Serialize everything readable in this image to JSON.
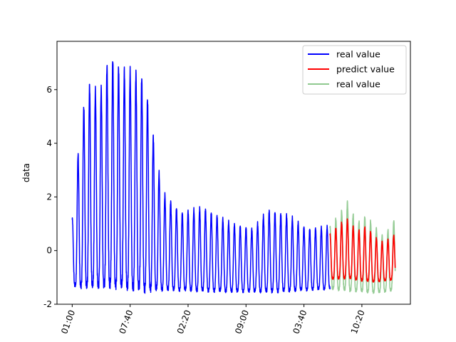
{
  "chart_data": {
    "type": "line",
    "title": "",
    "xlabel": "",
    "ylabel": "data",
    "ylim": [
      -2,
      7.8
    ],
    "yticks": [
      -2,
      0,
      2,
      4,
      6
    ],
    "x_tick_labels": [
      "01:00",
      "07:40",
      "02:20",
      "09:00",
      "03:40",
      "10:20"
    ],
    "x_tick_positions": [
      0,
      400,
      800,
      1200,
      1600,
      2000
    ],
    "xlim": [
      -105,
      2335
    ],
    "grid": false,
    "legend": "top-right",
    "legend_entries": [
      {
        "label": "real value",
        "color": "#0000ff"
      },
      {
        "label": "predict value",
        "color": "#ff0000"
      },
      {
        "label": "real value",
        "color": "#90c990"
      }
    ],
    "series": [
      {
        "name": "real value",
        "color": "#0000ff",
        "x_range": [
          0,
          1780
        ],
        "period": 40,
        "peak_anchors": [
          [
            0,
            1.15
          ],
          [
            60,
            4.8
          ],
          [
            110,
            6.2
          ],
          [
            190,
            5.85
          ],
          [
            260,
            7.3
          ],
          [
            330,
            6.75
          ],
          [
            470,
            6.6
          ],
          [
            510,
            6.0
          ],
          [
            620,
            2.2
          ],
          [
            750,
            1.4
          ],
          [
            900,
            1.6
          ],
          [
            1100,
            1.0
          ],
          [
            1250,
            0.8
          ],
          [
            1350,
            1.5
          ],
          [
            1500,
            1.3
          ],
          [
            1620,
            0.8
          ],
          [
            1780,
            0.9
          ]
        ],
        "trough_anchors": [
          [
            0,
            -1.3
          ],
          [
            300,
            -1.25
          ],
          [
            500,
            -1.4
          ],
          [
            800,
            -1.45
          ],
          [
            1100,
            -1.5
          ],
          [
            1400,
            -1.5
          ],
          [
            1780,
            -1.4
          ]
        ]
      },
      {
        "name": "real value",
        "color": "#90c990",
        "x_range": [
          1780,
          2230
        ],
        "period": 40,
        "peak_anchors": [
          [
            1780,
            0.9
          ],
          [
            1850,
            1.4
          ],
          [
            1910,
            1.9
          ],
          [
            1960,
            1.0
          ],
          [
            2030,
            1.3
          ],
          [
            2090,
            0.9
          ],
          [
            2150,
            0.5
          ],
          [
            2230,
            1.2
          ]
        ],
        "trough_anchors": [
          [
            1780,
            -1.4
          ],
          [
            1900,
            -1.45
          ],
          [
            2000,
            -1.5
          ],
          [
            2100,
            -1.55
          ],
          [
            2230,
            -1.45
          ]
        ]
      },
      {
        "name": "predict value",
        "color": "#ff0000",
        "x_range": [
          1780,
          2230
        ],
        "period": 40,
        "peak_anchors": [
          [
            1780,
            0.6
          ],
          [
            1850,
            1.0
          ],
          [
            1910,
            1.2
          ],
          [
            1960,
            0.7
          ],
          [
            2030,
            0.9
          ],
          [
            2090,
            0.5
          ],
          [
            2150,
            0.3
          ],
          [
            2230,
            0.6
          ]
        ],
        "trough_anchors": [
          [
            1780,
            -1.05
          ],
          [
            1900,
            -1.0
          ],
          [
            2000,
            -1.1
          ],
          [
            2100,
            -1.15
          ],
          [
            2230,
            -1.05
          ]
        ]
      }
    ]
  }
}
